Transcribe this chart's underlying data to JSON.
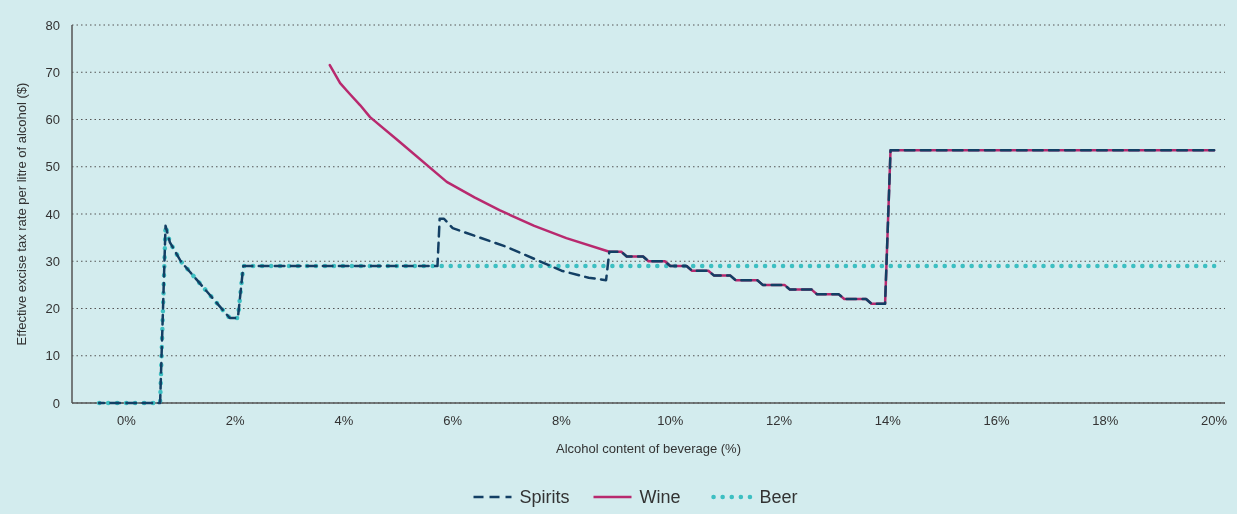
{
  "chart_data": {
    "type": "line",
    "xlabel": "Alcohol content of beverage (%)",
    "ylabel": "Effective excise tax rate per litre of alcohol ($)",
    "xlim": [
      -1,
      20.2
    ],
    "xticks": [
      {
        "value": 0,
        "label": "0%"
      },
      {
        "value": 2,
        "label": "2%"
      },
      {
        "value": 4,
        "label": "4%"
      },
      {
        "value": 6,
        "label": "6%"
      },
      {
        "value": 8,
        "label": "8%"
      },
      {
        "value": 10,
        "label": "10%"
      },
      {
        "value": 12,
        "label": "12%"
      },
      {
        "value": 14,
        "label": "14%"
      },
      {
        "value": 16,
        "label": "16%"
      },
      {
        "value": 18,
        "label": "18%"
      },
      {
        "value": 20,
        "label": "20%"
      }
    ],
    "ylim": [
      0,
      80
    ],
    "yticks": [
      0,
      10,
      20,
      30,
      40,
      50,
      60,
      70,
      80
    ],
    "grid": "y",
    "legend": "bottom",
    "series": [
      {
        "name": "Spirits",
        "color": "#133f64",
        "line_style": "dashed",
        "x": [
          -0.5,
          0.62,
          0.72,
          0.8,
          1.0,
          1.3,
          1.6,
          1.9,
          2.05,
          2.15,
          5.72,
          5.76,
          5.84,
          6.0,
          6.5,
          7.0,
          7.5,
          8.0,
          8.5,
          8.82,
          8.88,
          9.1,
          9.2,
          9.5,
          9.6,
          9.9,
          10.0,
          10.3,
          10.4,
          10.7,
          10.8,
          11.1,
          11.2,
          11.6,
          11.7,
          12.1,
          12.2,
          12.6,
          12.7,
          13.1,
          13.2,
          13.6,
          13.7,
          13.95,
          14.05,
          20.0
        ],
        "values": [
          0,
          0,
          37.5,
          34,
          30,
          26,
          22,
          18,
          18,
          29,
          29,
          39,
          39,
          37,
          35,
          33,
          30.5,
          28,
          26.5,
          26,
          32,
          32,
          31,
          31,
          30,
          30,
          29,
          29,
          28,
          28,
          27,
          27,
          26,
          26,
          25,
          25,
          24,
          24,
          23,
          23,
          22,
          22,
          21,
          21,
          53.5,
          53.5
        ]
      },
      {
        "name": "Wine",
        "color": "#b8296e",
        "line_style": "solid",
        "x": [
          3.74,
          3.93,
          4.1,
          4.3,
          4.48,
          5.0,
          5.89,
          6.4,
          6.86,
          7.5,
          8.09,
          8.88,
          9.1,
          9.2,
          9.5,
          9.6,
          9.9,
          10.0,
          10.3,
          10.4,
          10.7,
          10.8,
          11.1,
          11.2,
          11.6,
          11.7,
          12.1,
          12.2,
          12.6,
          12.7,
          13.1,
          13.2,
          13.6,
          13.7,
          13.95,
          14.05,
          20.0
        ],
        "values": [
          71.5,
          67.7,
          65.5,
          63,
          60.5,
          55.5,
          46.8,
          43.5,
          40.8,
          37.5,
          34.9,
          32,
          32,
          31,
          31,
          30,
          30,
          29,
          29,
          28,
          28,
          27,
          27,
          26,
          26,
          25,
          25,
          24,
          24,
          23,
          23,
          22,
          22,
          21,
          21,
          53.5,
          53.5
        ]
      },
      {
        "name": "Beer",
        "color": "#3dbfc2",
        "line_style": "dotted",
        "x": [
          -0.5,
          0.62,
          0.72,
          0.8,
          1.0,
          1.3,
          1.6,
          1.9,
          2.05,
          2.15,
          20.0
        ],
        "values": [
          0,
          0,
          37.5,
          34,
          30,
          26,
          22,
          18,
          18,
          29,
          29
        ]
      }
    ]
  }
}
